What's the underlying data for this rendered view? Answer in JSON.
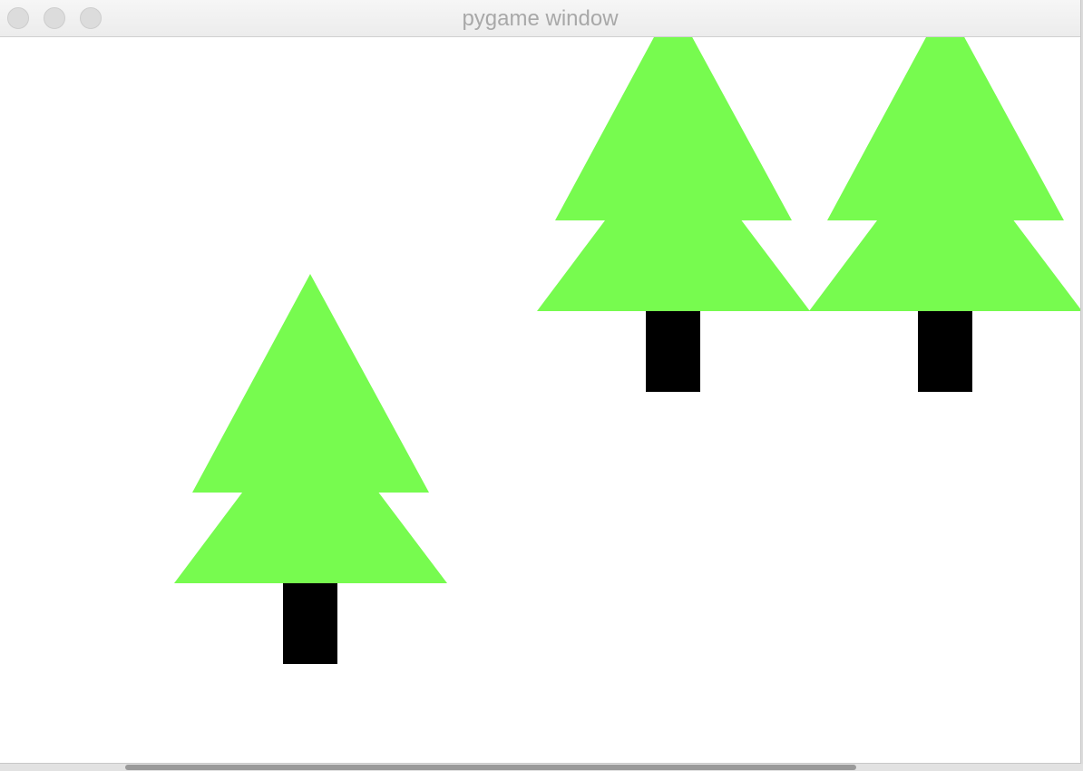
{
  "window": {
    "title": "pygame window",
    "controls": [
      "close",
      "minimize",
      "zoom"
    ]
  },
  "scene": {
    "background_color": "#ffffff",
    "foliage_color": "#77fb4f",
    "trunk_color": "#000000",
    "trees": [
      {
        "name": "tree-bottom-left"
      },
      {
        "name": "tree-top-middle"
      },
      {
        "name": "tree-top-right"
      }
    ]
  }
}
